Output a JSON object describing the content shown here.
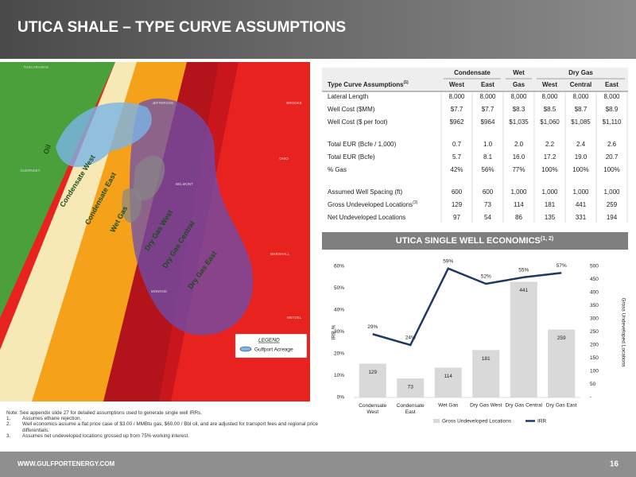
{
  "header": {
    "title": "UTICA SHALE – TYPE CURVE ASSUMPTIONS"
  },
  "map": {
    "zones": [
      "Oil",
      "Condensate West",
      "Condensate East",
      "Wet Gas",
      "Dry Gas West",
      "Dry Gas Central",
      "Dry Gas East"
    ],
    "counties": [
      "TUSCARAWAS",
      "JEFFERSON",
      "BROOKE",
      "GUERNSEY",
      "BELMONT",
      "OHIO",
      "MARSHALL",
      "MONROE",
      "WETZEL"
    ],
    "legend": {
      "title": "LEGEND",
      "item": "Gulfport Acreage"
    }
  },
  "table": {
    "title": "Type Curve Assumptions",
    "title_note": "(1)",
    "groups": [
      "Condensate",
      "Wet",
      "Dry Gas"
    ],
    "columns": [
      "West",
      "East",
      "Gas",
      "West",
      "Central",
      "East"
    ],
    "rows": [
      {
        "label": "Lateral Length",
        "cells": [
          "8,000",
          "8,000",
          "8,000",
          "8,000",
          "8,000",
          "8,000"
        ]
      },
      {
        "label": "Well Cost ($MM)",
        "cells": [
          "$7.7",
          "$7.7",
          "$8.3",
          "$8.5",
          "$8.7",
          "$8.9"
        ]
      },
      {
        "label": "Well Cost ($ per foot)",
        "cells": [
          "$962",
          "$964",
          "$1,035",
          "$1,060",
          "$1,085",
          "$1,110"
        ]
      },
      {
        "label": "Total EUR (Bcfe / 1,000)",
        "cells": [
          "0.7",
          "1.0",
          "2.0",
          "2.2",
          "2.4",
          "2.6"
        ]
      },
      {
        "label": "Total EUR (Bcfe)",
        "cells": [
          "5.7",
          "8.1",
          "16.0",
          "17.2",
          "19.0",
          "20.7"
        ]
      },
      {
        "label": "% Gas",
        "cells": [
          "42%",
          "56%",
          "77%",
          "100%",
          "100%",
          "100%"
        ]
      },
      {
        "label": "Assumed Well Spacing (ft)",
        "cells": [
          "600",
          "600",
          "1,000",
          "1,000",
          "1,000",
          "1,000"
        ]
      },
      {
        "label": "Gross Undeveloped Locations",
        "note": "(3)",
        "cells": [
          "129",
          "73",
          "114",
          "181",
          "441",
          "259"
        ]
      },
      {
        "label": "Net Undeveloped Locations",
        "cells": [
          "97",
          "54",
          "86",
          "135",
          "331",
          "194"
        ]
      }
    ]
  },
  "chart_data": {
    "type": "combo",
    "title": "UTICA SINGLE WELL ECONOMICS",
    "title_note": "(1, 2)",
    "categories": [
      "Condensate West",
      "Condensate East",
      "Wet Gas",
      "Dry Gas West",
      "Dry Gas Central",
      "Dry Gas East"
    ],
    "series": [
      {
        "name": "Gross Undeveloped Locations",
        "type": "bar",
        "axis": "y2",
        "color": "#d9d9d9",
        "values": [
          129,
          73,
          114,
          181,
          441,
          259
        ]
      },
      {
        "name": "IRR",
        "type": "line",
        "axis": "y",
        "color": "#1f3864",
        "values": [
          29,
          24,
          59,
          52,
          55,
          57
        ],
        "value_labels": [
          "29%",
          "24%",
          "59%",
          "52%",
          "55%",
          "57%"
        ]
      }
    ],
    "ylabel": "IRR %",
    "y2label": "Gross Undeveloped Locations",
    "ylim": [
      0,
      60
    ],
    "yticks": [
      {
        "value": 0,
        "label": "0%"
      },
      {
        "value": 10,
        "label": "10%"
      },
      {
        "value": 20,
        "label": "20%"
      },
      {
        "value": 30,
        "label": "30%"
      },
      {
        "value": 40,
        "label": "40%"
      },
      {
        "value": 50,
        "label": "50%"
      },
      {
        "value": 60,
        "label": "60%"
      }
    ],
    "y2lim": [
      0,
      500
    ],
    "y2ticks": [
      {
        "value": 0,
        "label": "-"
      },
      50,
      100,
      150,
      200,
      250,
      300,
      350,
      400,
      450,
      500
    ]
  },
  "notes": {
    "intro": "Note: See appendix slide 27 for detailed assumptions used to generate single well IRRs.",
    "items": [
      {
        "num": "1.",
        "text": "Assumes ethane rejection."
      },
      {
        "num": "2.",
        "text": "Well economics assume a flat price case of $3.00 / MMBtu gas, $60.00 / Bbl oil, and are adjusted for transport fees and regional price differentials."
      },
      {
        "num": "3.",
        "text": "Assumes net undeveloped locations grossed up from 75% working interest."
      }
    ]
  },
  "footer": {
    "url": "WWW.GULFPORTENERGY.COM",
    "page": "16"
  }
}
